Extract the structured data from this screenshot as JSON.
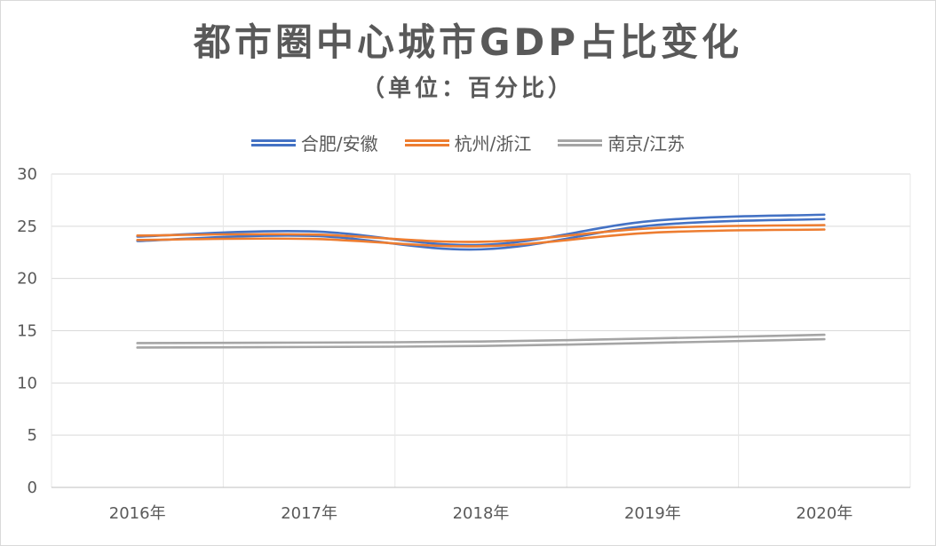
{
  "chart_data": {
    "type": "line",
    "title": "都市圈中心城市GDP占比变化",
    "subtitle": "（单位：百分比）",
    "categories": [
      "2016年",
      "2017年",
      "2018年",
      "2019年",
      "2020年"
    ],
    "ylim": [
      0,
      30
    ],
    "yticks": [
      "0",
      "5",
      "10",
      "15",
      "20",
      "25",
      "30"
    ],
    "ytick_values": [
      0,
      5,
      10,
      15,
      20,
      25,
      30
    ],
    "grid": true,
    "legend_position": "top",
    "series": [
      {
        "name": "合肥/安徽",
        "color": "#4472c4",
        "values": [
          23.8,
          24.3,
          23.0,
          25.3,
          25.9
        ]
      },
      {
        "name": "杭州/浙江",
        "color": "#ed7d31",
        "values": [
          23.9,
          24.0,
          23.3,
          24.6,
          24.9
        ]
      },
      {
        "name": "南京/江苏",
        "color": "#a5a5a5",
        "values": [
          13.6,
          13.65,
          13.75,
          14.05,
          14.4
        ]
      }
    ]
  }
}
